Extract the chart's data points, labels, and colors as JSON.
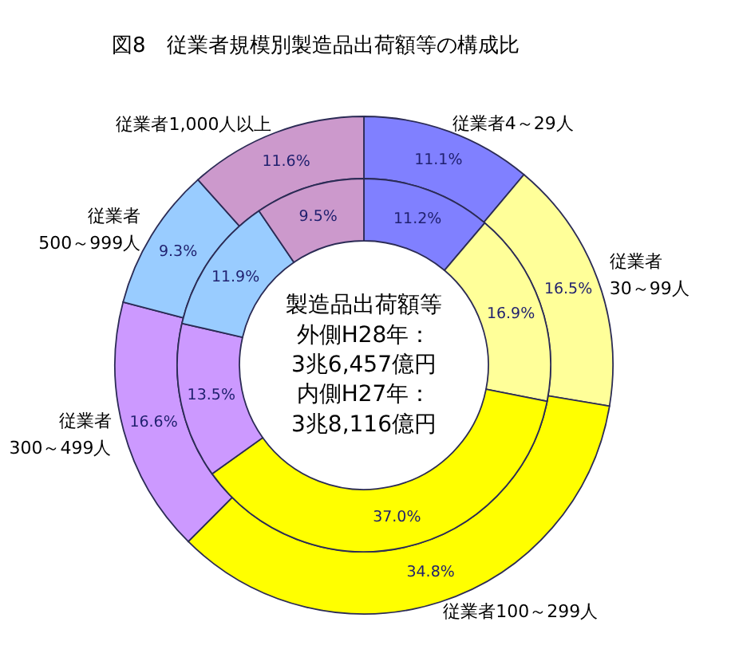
{
  "chart_data": {
    "type": "donut",
    "title": "図8　従業者規模別製造品出荷額等の構成比",
    "categories": [
      "従業者4～29人",
      "従業者30～99人",
      "従業者100～299人",
      "従業者300～499人",
      "従業者500～999人",
      "従業者1,000人以上"
    ],
    "colors": [
      "#8080ff",
      "#ffff99",
      "#ffff00",
      "#cc99ff",
      "#99ccff",
      "#cc99cc"
    ],
    "series": [
      {
        "values": [
          11.1,
          16.5,
          34.8,
          16.6,
          9.3,
          11.6
        ],
        "value_labels": [
          "11.1%",
          "16.5%",
          "34.8%",
          "16.6%",
          "9.3%",
          "11.6%"
        ]
      },
      {
        "values": [
          11.2,
          16.9,
          37.0,
          13.5,
          11.9,
          9.5
        ],
        "value_labels": [
          "11.2%",
          "16.9%",
          "37.0%",
          "13.5%",
          "11.9%",
          "9.5%"
        ]
      }
    ],
    "annotations": [
      "製造品出荷額等",
      "外側H28年：",
      "3兆6,457億円",
      "内側H27年：",
      "3兆8,116億円"
    ]
  }
}
